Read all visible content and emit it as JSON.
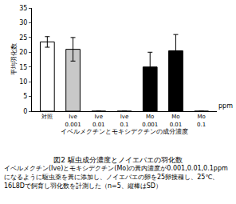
{
  "chart_data": {
    "type": "bar",
    "title": "図2 駆虫成分濃度とノイエバエの羽化数",
    "x_label": "イベルメクチンとモキシデクチンの成分濃度",
    "y_label": "平均羽化数",
    "categories": [
      "対照",
      "Ive\n0.001",
      "Ive\n0.01",
      "Ive\n0.1",
      "Mo\n0.001",
      "Mo\n0.01",
      "Mo\n0.1"
    ],
    "values": [
      23.5,
      21,
      0,
      0,
      15,
      20.5,
      0
    ],
    "errors": [
      1.8,
      4,
      0,
      0,
      5,
      5.5,
      0
    ],
    "colors": [
      "#ffffff",
      "#c8c8c8",
      "#c8c8c8",
      "#c8c8c8",
      "#000000",
      "#000000",
      "#000000"
    ],
    "ylim": [
      0,
      35
    ],
    "yticks": [
      0,
      5,
      10,
      15,
      20,
      25,
      30,
      35
    ],
    "grid": false,
    "annotations": [
      {
        "text": "ppm"
      }
    ],
    "caption": "イベルメクチン(Ive)とモキシデクチン(Mo)の糞内濃度が0.001,0.01,0.1ppmになるように駆虫薬を糞に添加し、ノイエバエの卵を25卵接種し、25℃、16L8Dで飼育し羽化数を計測した（n=5、縦棒はSD）"
  }
}
